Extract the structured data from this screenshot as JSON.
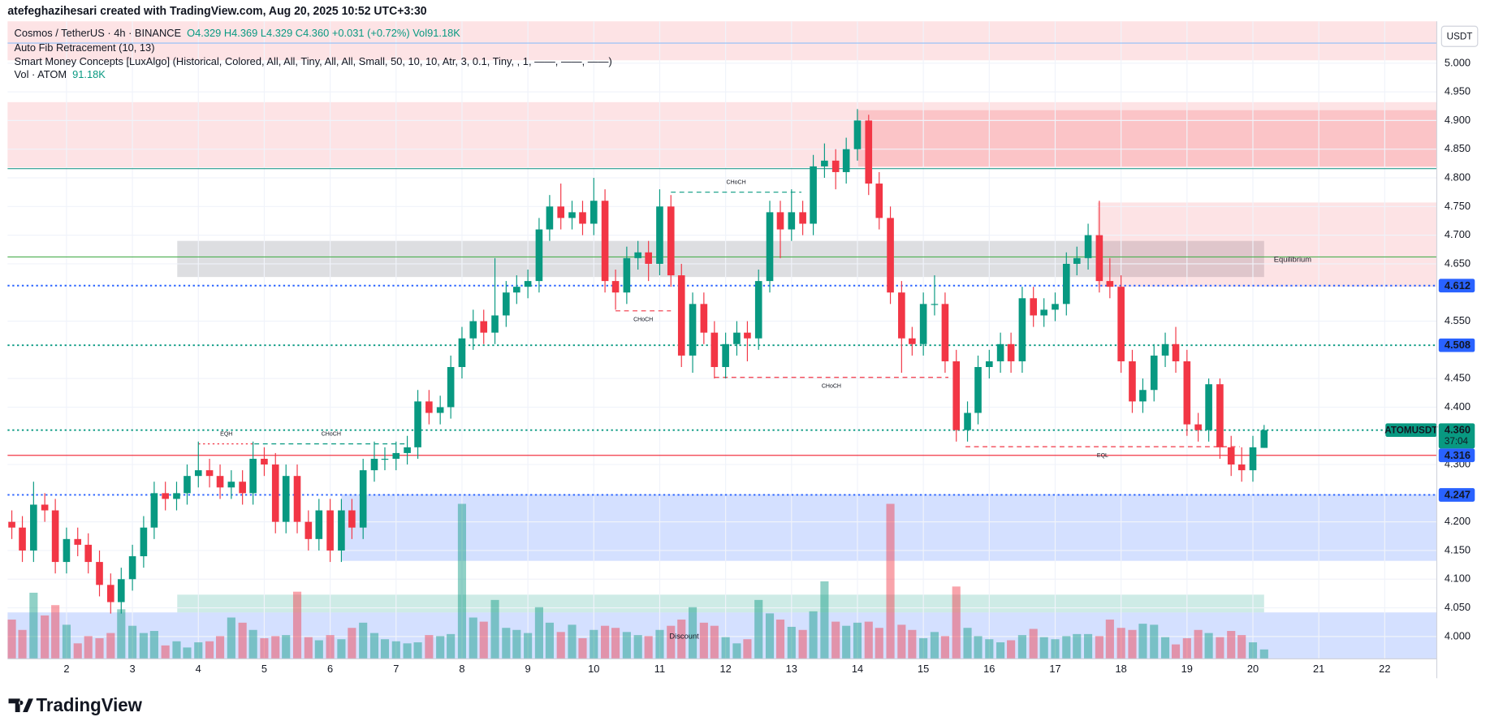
{
  "header": {
    "attribution": "atefeghazihesari created with TradingView.com, Aug 20, 2025 10:52 UTC+3:30",
    "symbol": "Cosmos / TetherUS · 4h · BINANCE",
    "ohlc": "O4.329 H4.369 L4.329 C4.360 +0.031 (+0.72%) Vol91.18K",
    "indicators": [
      "Auto Fib Retracement (10, 13)",
      "Smart Money Concepts [LuxAlgo] (Historical, Colored, All, All, Tiny, All, All, Small, 50, 10, 10, Atr, 3, 0.1, Tiny, , 1, ——, ——, ——)"
    ],
    "volume_label": "Vol · ATOM",
    "volume_value": "91.18K",
    "currency": "USDT"
  },
  "footer": {
    "brand": "TradingView"
  },
  "chart_data": {
    "type": "candlestick",
    "x": [
      1.17,
      1.33,
      1.5,
      1.67,
      1.83,
      2,
      2.17,
      2.33,
      2.5,
      2.67,
      2.83,
      3,
      3.17,
      3.33,
      3.5,
      3.67,
      3.83,
      4,
      4.17,
      4.33,
      4.5,
      4.67,
      4.83,
      5,
      5.17,
      5.33,
      5.5,
      5.67,
      5.83,
      6,
      6.17,
      6.33,
      6.5,
      6.67,
      6.83,
      7,
      7.17,
      7.33,
      7.5,
      7.67,
      7.83,
      8,
      8.17,
      8.33,
      8.5,
      8.67,
      8.83,
      9,
      9.17,
      9.33,
      9.5,
      9.67,
      9.83,
      10,
      10.17,
      10.33,
      10.5,
      10.67,
      10.83,
      11,
      11.17,
      11.33,
      11.5,
      11.67,
      11.83,
      12,
      12.17,
      12.33,
      12.5,
      12.67,
      12.83,
      13,
      13.17,
      13.33,
      13.5,
      13.67,
      13.83,
      14,
      14.17,
      14.33,
      14.5,
      14.67,
      14.83,
      15,
      15.17,
      15.33,
      15.5,
      15.67,
      15.83,
      16,
      16.17,
      16.33,
      16.5,
      16.67,
      16.83,
      17,
      17.17,
      17.33,
      17.5,
      17.67,
      17.83,
      18,
      18.17,
      18.33,
      18.5,
      18.67,
      18.83,
      19,
      19.17,
      19.33,
      19.5,
      19.67,
      19.83,
      20,
      20.17
    ],
    "open": [
      4.2,
      4.19,
      4.15,
      4.23,
      4.22,
      4.13,
      4.17,
      4.16,
      4.13,
      4.09,
      4.06,
      4.1,
      4.14,
      4.19,
      4.25,
      4.24,
      4.25,
      4.28,
      4.29,
      4.28,
      4.26,
      4.27,
      4.25,
      4.31,
      4.3,
      4.2,
      4.28,
      4.2,
      4.17,
      4.22,
      4.15,
      4.22,
      4.19,
      4.29,
      4.31,
      4.31,
      4.32,
      4.33,
      4.41,
      4.39,
      4.4,
      4.47,
      4.52,
      4.55,
      4.53,
      4.56,
      4.6,
      4.61,
      4.62,
      4.71,
      4.75,
      4.73,
      4.74,
      4.72,
      4.76,
      4.62,
      4.6,
      4.66,
      4.67,
      4.65,
      4.75,
      4.63,
      4.49,
      4.58,
      4.53,
      4.47,
      4.51,
      4.53,
      4.52,
      4.62,
      4.74,
      4.71,
      4.74,
      4.72,
      4.82,
      4.83,
      4.81,
      4.85,
      4.9,
      4.79,
      4.73,
      4.6,
      4.52,
      4.51,
      4.58,
      4.58,
      4.48,
      4.36,
      4.39,
      4.47,
      4.48,
      4.51,
      4.48,
      4.59,
      4.56,
      4.57,
      4.58,
      4.65,
      4.66,
      4.7,
      4.62,
      4.61,
      4.48,
      4.41,
      4.43,
      4.49,
      4.51,
      4.48,
      4.37,
      4.36,
      4.44,
      4.33,
      4.3,
      4.29,
      4.329
    ],
    "high": [
      4.22,
      4.21,
      4.27,
      4.25,
      4.24,
      4.19,
      4.19,
      4.18,
      4.15,
      4.11,
      4.12,
      4.16,
      4.21,
      4.27,
      4.27,
      4.27,
      4.3,
      4.34,
      4.31,
      4.3,
      4.29,
      4.29,
      4.34,
      4.33,
      4.32,
      4.3,
      4.3,
      4.22,
      4.24,
      4.24,
      4.24,
      4.24,
      4.31,
      4.34,
      4.33,
      4.34,
      4.35,
      4.43,
      4.43,
      4.42,
      4.49,
      4.54,
      4.57,
      4.57,
      4.66,
      4.62,
      4.63,
      4.64,
      4.73,
      4.77,
      4.79,
      4.76,
      4.76,
      4.8,
      4.78,
      4.64,
      4.68,
      4.69,
      4.69,
      4.78,
      4.77,
      4.65,
      4.6,
      4.6,
      4.55,
      4.53,
      4.55,
      4.55,
      4.64,
      4.76,
      4.76,
      4.78,
      4.76,
      4.84,
      4.86,
      4.85,
      4.87,
      4.92,
      4.91,
      4.81,
      4.75,
      4.62,
      4.54,
      4.6,
      4.63,
      4.6,
      4.5,
      4.41,
      4.49,
      4.5,
      4.53,
      4.53,
      4.61,
      4.61,
      4.59,
      4.6,
      4.67,
      4.68,
      4.72,
      4.76,
      4.66,
      4.63,
      4.5,
      4.45,
      4.51,
      4.53,
      4.54,
      4.5,
      4.39,
      4.45,
      4.45,
      4.35,
      4.33,
      4.35,
      4.369
    ],
    "low": [
      4.17,
      4.13,
      4.13,
      4.2,
      4.11,
      4.11,
      4.14,
      4.11,
      4.07,
      4.04,
      4.04,
      4.08,
      4.12,
      4.17,
      4.22,
      4.22,
      4.23,
      4.26,
      4.26,
      4.24,
      4.24,
      4.23,
      4.23,
      4.28,
      4.18,
      4.18,
      4.18,
      4.15,
      4.15,
      4.13,
      4.13,
      4.17,
      4.17,
      4.27,
      4.29,
      4.29,
      4.3,
      4.31,
      4.37,
      4.37,
      4.38,
      4.45,
      4.5,
      4.51,
      4.51,
      4.54,
      4.58,
      4.59,
      4.6,
      4.69,
      4.71,
      4.71,
      4.7,
      4.7,
      4.6,
      4.57,
      4.58,
      4.64,
      4.62,
      4.63,
      4.61,
      4.47,
      4.46,
      4.51,
      4.45,
      4.45,
      4.49,
      4.48,
      4.5,
      4.6,
      4.66,
      4.69,
      4.7,
      4.7,
      4.8,
      4.78,
      4.79,
      4.83,
      4.77,
      4.71,
      4.58,
      4.46,
      4.49,
      4.49,
      4.56,
      4.46,
      4.34,
      4.34,
      4.37,
      4.45,
      4.46,
      4.46,
      4.46,
      4.54,
      4.54,
      4.55,
      4.56,
      4.63,
      4.64,
      4.6,
      4.59,
      4.46,
      4.39,
      4.39,
      4.41,
      4.47,
      4.46,
      4.35,
      4.34,
      4.34,
      4.31,
      4.28,
      4.27,
      4.27,
      4.329
    ],
    "close": [
      4.19,
      4.15,
      4.23,
      4.22,
      4.13,
      4.17,
      4.16,
      4.13,
      4.09,
      4.06,
      4.1,
      4.14,
      4.19,
      4.25,
      4.24,
      4.25,
      4.28,
      4.29,
      4.28,
      4.26,
      4.27,
      4.25,
      4.31,
      4.3,
      4.2,
      4.28,
      4.2,
      4.17,
      4.22,
      4.15,
      4.22,
      4.19,
      4.29,
      4.31,
      4.31,
      4.32,
      4.33,
      4.41,
      4.39,
      4.4,
      4.47,
      4.52,
      4.55,
      4.53,
      4.56,
      4.6,
      4.61,
      4.62,
      4.71,
      4.75,
      4.73,
      4.74,
      4.72,
      4.76,
      4.62,
      4.6,
      4.66,
      4.67,
      4.65,
      4.75,
      4.63,
      4.49,
      4.58,
      4.53,
      4.47,
      4.51,
      4.53,
      4.52,
      4.62,
      4.74,
      4.71,
      4.74,
      4.72,
      4.82,
      4.83,
      4.81,
      4.85,
      4.9,
      4.79,
      4.73,
      4.6,
      4.52,
      4.51,
      4.58,
      4.58,
      4.48,
      4.36,
      4.39,
      4.47,
      4.48,
      4.51,
      4.48,
      4.59,
      4.56,
      4.57,
      4.58,
      4.65,
      4.66,
      4.7,
      4.62,
      4.61,
      4.48,
      4.41,
      4.43,
      4.49,
      4.51,
      4.48,
      4.37,
      4.36,
      4.44,
      4.33,
      4.3,
      4.29,
      4.33,
      4.36
    ],
    "volume": [
      380,
      280,
      640,
      420,
      520,
      330,
      150,
      220,
      200,
      250,
      480,
      320,
      250,
      270,
      130,
      170,
      110,
      160,
      170,
      220,
      400,
      350,
      280,
      200,
      220,
      230,
      650,
      210,
      180,
      230,
      190,
      300,
      350,
      250,
      190,
      170,
      150,
      160,
      230,
      220,
      240,
      1500,
      400,
      360,
      570,
      300,
      280,
      250,
      500,
      350,
      260,
      330,
      200,
      280,
      320,
      300,
      260,
      230,
      220,
      280,
      320,
      380,
      500,
      350,
      320,
      210,
      150,
      190,
      570,
      440,
      380,
      310,
      280,
      460,
      750,
      360,
      320,
      350,
      360,
      300,
      1500,
      330,
      280,
      200,
      260,
      220,
      700,
      300,
      220,
      190,
      160,
      180,
      230,
      290,
      210,
      190,
      220,
      240,
      240,
      220,
      380,
      300,
      280,
      340,
      330,
      210,
      140,
      200,
      280,
      250,
      210,
      270,
      230,
      160,
      91.18
    ],
    "up_color": "#089981",
    "down_color": "#f23645",
    "xlim": [
      1.106,
      22.79
    ],
    "xticks": [
      2,
      3,
      4,
      5,
      6,
      7,
      8,
      9,
      10,
      11,
      12,
      13,
      14,
      15,
      16,
      17,
      18,
      19,
      20,
      21,
      22
    ],
    "ylim": [
      3.961,
      5.073
    ],
    "yticks": [
      {
        "value": 4,
        "label": "4.000"
      },
      {
        "value": 4.05,
        "label": "4.050"
      },
      {
        "value": 4.1,
        "label": "4.100"
      },
      {
        "value": 4.15,
        "label": "4.150"
      },
      {
        "value": 4.2,
        "label": "4.200"
      },
      {
        "value": 4.3,
        "label": "4.300"
      },
      {
        "value": 4.4,
        "label": "4.400"
      },
      {
        "value": 4.45,
        "label": "4.450"
      },
      {
        "value": 4.55,
        "label": "4.550"
      },
      {
        "value": 4.65,
        "label": "4.650"
      },
      {
        "value": 4.7,
        "label": "4.700"
      },
      {
        "value": 4.75,
        "label": "4.750"
      },
      {
        "value": 4.8,
        "label": "4.800"
      },
      {
        "value": 4.85,
        "label": "4.850"
      },
      {
        "value": 4.9,
        "label": "4.900"
      },
      {
        "value": 4.95,
        "label": "4.950"
      },
      {
        "value": 5,
        "label": "5.000"
      }
    ],
    "grid": true,
    "zones": [
      {
        "x1": 1.106,
        "x2": 22.79,
        "top": 5.073,
        "bottom": 5.005,
        "color": "rgba(242,54,69,0.14)"
      },
      {
        "x1": 1.106,
        "x2": 22.79,
        "top": 4.932,
        "bottom": 4.818,
        "color": "rgba(242,54,69,0.14)"
      },
      {
        "x1": 13.99,
        "x2": 22.79,
        "top": 4.918,
        "bottom": 4.82,
        "color": "rgba(242,54,69,0.18)"
      },
      {
        "x1": 3.68,
        "x2": 20.17,
        "top": 4.69,
        "bottom": 4.627,
        "color": "rgba(120,123,134,0.25)",
        "label": "Equilibrium",
        "label_color": "#b2b5be",
        "label_position": "right"
      },
      {
        "x1": 17.64,
        "x2": 22.79,
        "top": 4.757,
        "bottom": 4.61,
        "color": "rgba(242,54,69,0.14)"
      },
      {
        "x1": 6.17,
        "x2": 22.79,
        "top": 4.248,
        "bottom": 4.132,
        "color": "rgba(41,98,255,0.2)"
      },
      {
        "x1": 3.68,
        "x2": 20.17,
        "top": 4.073,
        "bottom": 4.042,
        "color": "rgba(8,153,129,0.2)"
      },
      {
        "x1": 1.106,
        "x2": 22.79,
        "top": 4.042,
        "bottom": 3.961,
        "color": "rgba(41,98,255,0.2)",
        "label": "Discount",
        "label_color": "#5b6a8a",
        "label_position": "center"
      }
    ],
    "levels": [
      {
        "value": 5.035,
        "color": "#90bff9",
        "style": "solid"
      },
      {
        "value": 4.816,
        "color": "#2a9d8f",
        "style": "solid"
      },
      {
        "value": 4.662,
        "color": "#4caf50",
        "style": "solid"
      },
      {
        "value": 4.612,
        "color": "#2962ff",
        "style": "dotted",
        "tag_color": "#2962ff"
      },
      {
        "value": 4.508,
        "color": "#089981",
        "style": "dotted",
        "tag_color": "#2962ff"
      },
      {
        "value": 4.36,
        "label": "4.360",
        "color": "#089981",
        "style": "dotted",
        "tag_color": "#089981"
      },
      {
        "value": 4.316,
        "color": "#f23645",
        "style": "solid",
        "tag_color": "#2962ff"
      },
      {
        "value": 4.247,
        "color": "#2962ff",
        "style": "dotted",
        "tag_color": "#2962ff"
      }
    ],
    "annotations": [
      {
        "label": "CHoCH",
        "color": "#089981",
        "price": 4.775,
        "x1": 11.17,
        "x2": 13.15,
        "style": "dashed",
        "position": "above"
      },
      {
        "label": "CHoCH",
        "color": "#f23645",
        "price": 4.568,
        "x1": 10.33,
        "x2": 11.17,
        "style": "dashed",
        "position": "below"
      },
      {
        "label": "CHoCH",
        "color": "#f23645",
        "price": 4.452,
        "x1": 11.83,
        "x2": 15.38,
        "style": "dashed",
        "position": "below"
      },
      {
        "label": "CHoCH",
        "color": "#089981",
        "price": 4.336,
        "x1": 4.85,
        "x2": 7.18,
        "style": "dashed",
        "position": "above"
      },
      {
        "label": "EQH",
        "color": "#f23645",
        "price": 4.336,
        "x1": 4.0,
        "x2": 4.85,
        "style": "dotted",
        "position": "above"
      },
      {
        "label": "EQL",
        "color": "#f23645",
        "price": 4.331,
        "x1": 15.64,
        "x2": 19.8,
        "style": "dashed",
        "position": "below"
      }
    ],
    "last_price": {
      "symbol": "ATOMUSDT",
      "countdown": "37:04"
    }
  }
}
